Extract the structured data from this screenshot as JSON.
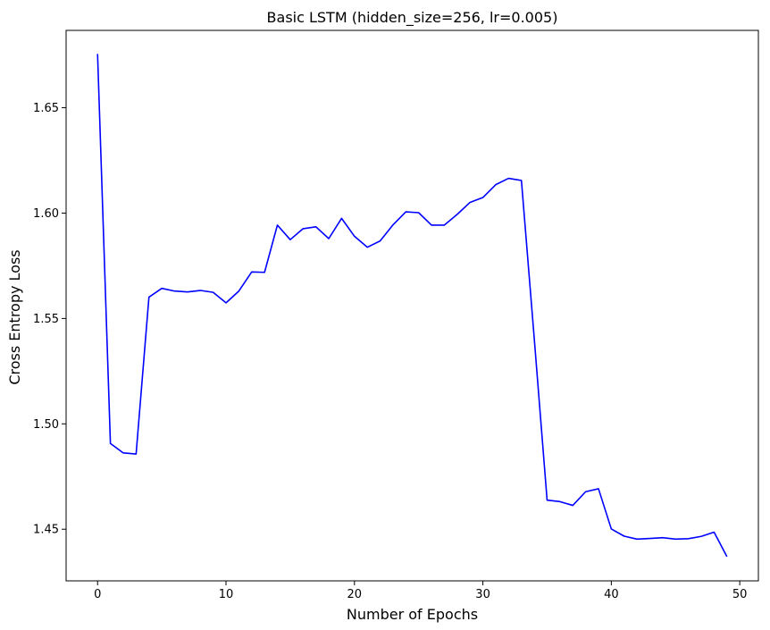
{
  "chart_data": {
    "type": "line",
    "title": "Basic LSTM (hidden_size=256, lr=0.005)",
    "xlabel": "Number of Epochs",
    "ylabel": "Cross Entropy Loss",
    "xlim": [
      -2.45,
      51.45
    ],
    "ylim": [
      1.4255,
      1.6867
    ],
    "xticks": [
      0,
      10,
      20,
      30,
      40,
      50
    ],
    "yticks": [
      1.45,
      1.5,
      1.55,
      1.6,
      1.65
    ],
    "xtick_labels": [
      "0",
      "10",
      "20",
      "30",
      "40",
      "50"
    ],
    "ytick_labels": [
      "1.45",
      "1.50",
      "1.55",
      "1.60",
      "1.65"
    ],
    "grid": false,
    "series": [
      {
        "color": "#0000ff",
        "x": [
          0,
          1,
          2,
          3,
          4,
          5,
          6,
          7,
          8,
          9,
          10,
          11,
          12,
          13,
          14,
          15,
          16,
          17,
          18,
          19,
          20,
          21,
          22,
          23,
          24,
          25,
          26,
          27,
          28,
          29,
          30,
          31,
          32,
          33,
          34,
          35,
          36,
          37,
          38,
          39,
          40,
          41,
          42,
          43,
          44,
          45,
          46,
          47,
          48,
          49
        ],
        "y": [
          1.6755,
          1.4907,
          1.4862,
          1.4857,
          1.5601,
          1.5643,
          1.563,
          1.5626,
          1.5633,
          1.5624,
          1.5574,
          1.563,
          1.5721,
          1.5719,
          1.5943,
          1.5874,
          1.5926,
          1.5935,
          1.5879,
          1.5975,
          1.589,
          1.5838,
          1.5868,
          1.5944,
          1.6006,
          1.6002,
          1.5943,
          1.5943,
          1.5994,
          1.6051,
          1.6074,
          1.6135,
          1.6165,
          1.6155,
          1.5404,
          1.4638,
          1.4631,
          1.4613,
          1.4678,
          1.4692,
          1.4501,
          1.4467,
          1.4453,
          1.4456,
          1.446,
          1.4453,
          1.4455,
          1.4466,
          1.4486,
          1.437
        ]
      }
    ]
  }
}
